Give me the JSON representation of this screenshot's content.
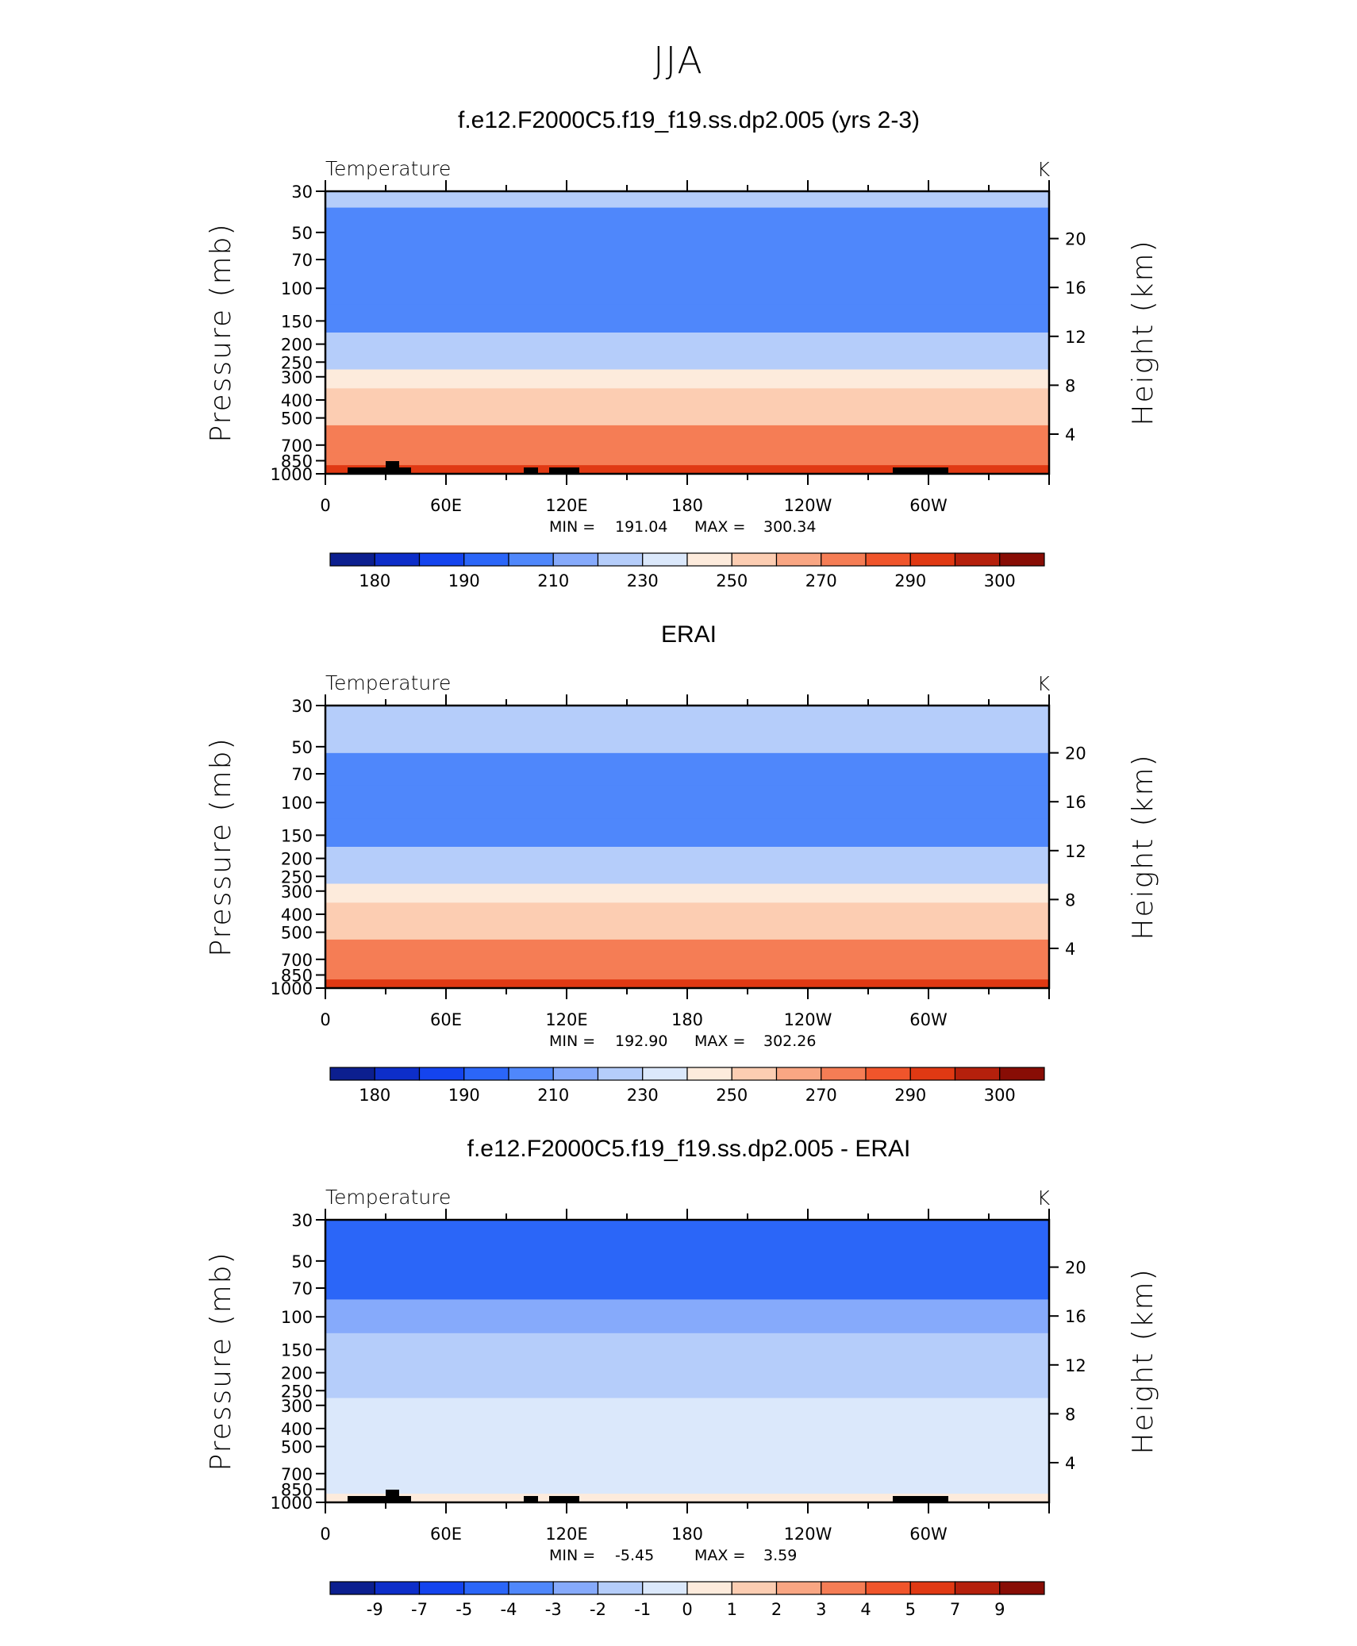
{
  "figure": {
    "title": "JJA"
  },
  "chart_data": [
    {
      "type": "heatmap",
      "title": "f.e12.F2000C5.f19_f19.ss.dp2.005 (yrs 2-3)",
      "variable": "Temperature",
      "units": "K",
      "ylabel": "Pressure (mb)",
      "y2label": "Height (km)",
      "x_ticks": [
        "0",
        "60E",
        "120E",
        "180",
        "120W",
        "60W"
      ],
      "y_ticks": [
        "30",
        "50",
        "70",
        "100",
        "150",
        "200",
        "250",
        "300",
        "400",
        "500",
        "700",
        "850",
        "1000"
      ],
      "y2_ticks": [
        "20",
        "16",
        "12",
        "8",
        "4"
      ],
      "min_label": "MIN =",
      "min": "191.04",
      "max_label": "MAX =",
      "max": "300.34",
      "colorbar_labels": [
        "180",
        "190",
        "210",
        "230",
        "250",
        "270",
        "290",
        "300"
      ],
      "colorbar_colors": [
        "#0c1f8f",
        "#0d2ec9",
        "#1444ee",
        "#2b66f8",
        "#4f87fb",
        "#86aafb",
        "#b5cdfa",
        "#dbe8fb",
        "#fdebdc",
        "#fccdb2",
        "#f9a683",
        "#f57d55",
        "#f0552b",
        "#e03913",
        "#b5200c",
        "#880d05"
      ],
      "profile_pressure_mb": [
        30,
        45,
        65,
        100,
        150,
        200,
        250,
        300,
        400,
        500,
        600,
        700,
        850,
        950
      ],
      "profile_temperature_K": [
        210,
        205,
        195,
        192,
        200,
        212,
        225,
        240,
        253,
        263,
        270,
        277,
        285,
        295
      ]
    },
    {
      "type": "heatmap",
      "title": "ERAI",
      "variable": "Temperature",
      "units": "K",
      "ylabel": "Pressure (mb)",
      "y2label": "Height (km)",
      "x_ticks": [
        "0",
        "60E",
        "120E",
        "180",
        "120W",
        "60W"
      ],
      "y_ticks": [
        "30",
        "50",
        "70",
        "100",
        "150",
        "200",
        "250",
        "300",
        "400",
        "500",
        "700",
        "850",
        "1000"
      ],
      "y2_ticks": [
        "20",
        "16",
        "12",
        "8",
        "4"
      ],
      "min_label": "MIN =",
      "min": "192.90",
      "max_label": "MAX =",
      "max": "302.26",
      "colorbar_labels": [
        "180",
        "190",
        "210",
        "230",
        "250",
        "270",
        "290",
        "300"
      ],
      "colorbar_colors": [
        "#0c1f8f",
        "#0d2ec9",
        "#1444ee",
        "#2b66f8",
        "#4f87fb",
        "#86aafb",
        "#b5cdfa",
        "#dbe8fb",
        "#fdebdc",
        "#fccdb2",
        "#f9a683",
        "#f57d55",
        "#f0552b",
        "#e03913",
        "#b5200c",
        "#880d05"
      ],
      "profile_pressure_mb": [
        30,
        45,
        65,
        100,
        150,
        200,
        250,
        300,
        400,
        500,
        600,
        700,
        850,
        950
      ],
      "profile_temperature_K": [
        215,
        210,
        200,
        193,
        200,
        212,
        225,
        240,
        253,
        263,
        270,
        277,
        286,
        296
      ]
    },
    {
      "type": "heatmap",
      "title": "f.e12.F2000C5.f19_f19.ss.dp2.005 - ERAI",
      "variable": "Temperature",
      "units": "K",
      "ylabel": "Pressure (mb)",
      "y2label": "Height (km)",
      "x_ticks": [
        "0",
        "60E",
        "120E",
        "180",
        "120W",
        "60W"
      ],
      "y_ticks": [
        "30",
        "50",
        "70",
        "100",
        "150",
        "200",
        "250",
        "300",
        "400",
        "500",
        "700",
        "850",
        "1000"
      ],
      "y2_ticks": [
        "20",
        "16",
        "12",
        "8",
        "4"
      ],
      "min_label": "MIN =",
      "min": "-5.45",
      "max_label": "MAX =",
      "max": "3.59",
      "colorbar_labels": [
        "-9",
        "-7",
        "-5",
        "-4",
        "-3",
        "-2",
        "-1",
        "0",
        "1",
        "2",
        "3",
        "4",
        "5",
        "7",
        "9"
      ],
      "colorbar_colors": [
        "#0c1f8f",
        "#0d2ec9",
        "#1444ee",
        "#2b66f8",
        "#4f87fb",
        "#86aafb",
        "#b5cdfa",
        "#dbe8fb",
        "#fdebdc",
        "#fccdb2",
        "#f9a683",
        "#f57d55",
        "#f0552b",
        "#e03913",
        "#b5200c",
        "#880d05"
      ],
      "profile_pressure_mb": [
        30,
        45,
        65,
        100,
        150,
        200,
        250,
        300,
        400,
        500,
        600,
        700,
        850,
        950
      ],
      "profile_temperature_K": [
        -4.5,
        -4.5,
        -4.2,
        -2.5,
        -1.8,
        -1.5,
        -1.2,
        -0.5,
        -0.5,
        -0.5,
        -0.5,
        -0.5,
        -0.5,
        0.5
      ]
    }
  ]
}
